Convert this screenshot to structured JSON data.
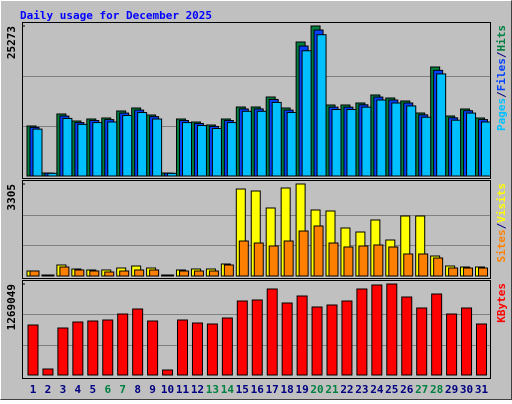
{
  "chart_data": [
    {
      "type": "bar",
      "title": "Daily usage for December 2025",
      "legend_separator": "/",
      "categories": [
        "1",
        "2",
        "3",
        "4",
        "5",
        "6",
        "7",
        "8",
        "9",
        "10",
        "11",
        "12",
        "13",
        "14",
        "15",
        "16",
        "17",
        "18",
        "19",
        "20",
        "21",
        "22",
        "23",
        "24",
        "25",
        "26",
        "27",
        "28",
        "29",
        "30",
        "31"
      ],
      "series": [
        {
          "name": "Hits",
          "color": "#008040",
          "values": [
            8424,
            505,
            10446,
            9266,
            9604,
            9772,
            10952,
            11457,
            10278,
            505,
            9604,
            9098,
            8593,
            9604,
            11626,
            11626,
            13311,
            11457,
            22577,
            25273,
            11963,
            11963,
            12300,
            13648,
            13142,
            12637,
            10615,
            18365,
            10109,
            11289,
            9772
          ]
        },
        {
          "name": "Files",
          "color": "#0040ff",
          "values": [
            8200,
            480,
            10100,
            9000,
            9350,
            9500,
            10600,
            11100,
            10000,
            480,
            9350,
            8850,
            8350,
            9350,
            11300,
            11300,
            12900,
            11100,
            21900,
            24600,
            11600,
            11600,
            12000,
            13300,
            12800,
            12300,
            10300,
            17800,
            9800,
            11000,
            9500
          ]
        },
        {
          "name": "Pages",
          "color": "#00c0ff",
          "values": [
            7900,
            450,
            9700,
            8700,
            9000,
            9100,
            10200,
            10700,
            9600,
            450,
            9000,
            8500,
            8000,
            9000,
            10900,
            10900,
            12400,
            10700,
            21100,
            23800,
            11200,
            11200,
            11600,
            12800,
            12300,
            11800,
            9900,
            17200,
            9400,
            10600,
            9100
          ]
        }
      ],
      "ylim": [
        0,
        25273
      ],
      "yticks": [
        25273
      ]
    },
    {
      "type": "bar",
      "categories": [
        "1",
        "2",
        "3",
        "4",
        "5",
        "6",
        "7",
        "8",
        "9",
        "10",
        "11",
        "12",
        "13",
        "14",
        "15",
        "16",
        "17",
        "18",
        "19",
        "20",
        "21",
        "22",
        "23",
        "24",
        "25",
        "26",
        "27",
        "28",
        "29",
        "30",
        "31"
      ],
      "series": [
        {
          "name": "Visits",
          "color": "#ffff00",
          "values": [
            180,
            36,
            395,
            251,
            216,
            216,
            287,
            359,
            287,
            36,
            216,
            251,
            251,
            431,
            3125,
            3053,
            2443,
            3161,
            3305,
            2371,
            2335,
            1724,
            1580,
            2012,
            1293,
            2155,
            2155,
            718,
            359,
            323,
            323
          ]
        },
        {
          "name": "Sites",
          "color": "#ff8000",
          "values": [
            180,
            36,
            323,
            216,
            180,
            144,
            180,
            216,
            216,
            36,
            180,
            180,
            180,
            395,
            1257,
            1185,
            1078,
            1257,
            1616,
            1796,
            1185,
            1042,
            1078,
            1114,
            1042,
            790,
            790,
            646,
            287,
            287,
            287
          ]
        }
      ],
      "ylim": [
        0,
        3305
      ],
      "yticks": [
        3305
      ]
    },
    {
      "type": "bar",
      "categories": [
        "1",
        "2",
        "3",
        "4",
        "5",
        "6",
        "7",
        "8",
        "9",
        "10",
        "11",
        "12",
        "13",
        "14",
        "15",
        "16",
        "17",
        "18",
        "19",
        "20",
        "21",
        "22",
        "23",
        "24",
        "25",
        "26",
        "27",
        "28",
        "29",
        "30",
        "31"
      ],
      "category_colors": [
        "#000080",
        "#000080",
        "#000080",
        "#000080",
        "#000080",
        "#008040",
        "#008040",
        "#000080",
        "#000080",
        "#000080",
        "#000080",
        "#000080",
        "#008040",
        "#008040",
        "#000080",
        "#000080",
        "#000080",
        "#000080",
        "#000080",
        "#008040",
        "#008040",
        "#000080",
        "#000080",
        "#000080",
        "#000080",
        "#000080",
        "#008040",
        "#008040",
        "#000080",
        "#000080",
        "#000080"
      ],
      "series": [
        {
          "name": "KBytes",
          "color": "#ff0000",
          "values": [
            697300,
            83676,
            655462,
            739138,
            753084,
            767030,
            850706,
            920436,
            753084,
            69730,
            767030,
            725192,
            711246,
            794922,
            1032004,
            1045950,
            1199356,
            1004112,
            1101734,
            948328,
            976220,
            1032004,
            1199356,
            1255140,
            1269049,
            1087788,
            934382,
            1129626,
            850706,
            934382,
            711246
          ]
        }
      ],
      "ylim": [
        0,
        1269049
      ],
      "yticks": [
        1269049
      ]
    }
  ]
}
